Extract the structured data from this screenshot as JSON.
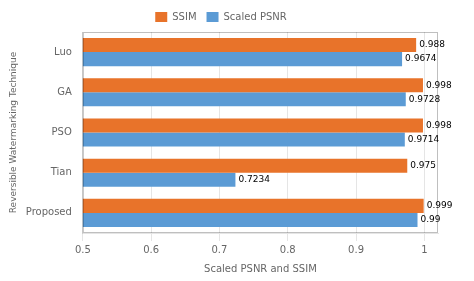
{
  "chart_data": {
    "type": "bar",
    "orientation": "horizontal",
    "categories": [
      "Luo",
      "GA",
      "PSO",
      "Tian",
      "Proposed"
    ],
    "series": [
      {
        "name": "SSIM",
        "color": "#E8732A",
        "values": [
          0.988,
          0.998,
          0.998,
          0.975,
          0.999
        ]
      },
      {
        "name": "Scaled PSNR",
        "color": "#5B9BD5",
        "values": [
          0.9674,
          0.9728,
          0.9714,
          0.7234,
          0.99
        ]
      }
    ],
    "xlabel": "Scaled PSNR and SSIM",
    "ylabel": "Reversible Watermarking Technique",
    "xlim": [
      0.5,
      1.02
    ],
    "xticks": [
      0.5,
      0.6,
      0.7,
      0.8,
      0.9,
      1
    ],
    "grid": true,
    "legend": "top",
    "data_labels": true
  }
}
